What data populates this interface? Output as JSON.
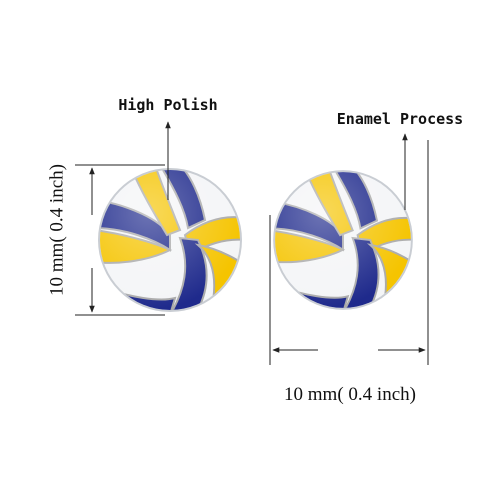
{
  "annotations": [
    {
      "label": "High Polish"
    },
    {
      "label": "Enamel Process"
    }
  ],
  "dimensions": {
    "vertical": "10 mm( 0.4 inch)",
    "horizontal": "10 mm( 0.4 inch)"
  }
}
